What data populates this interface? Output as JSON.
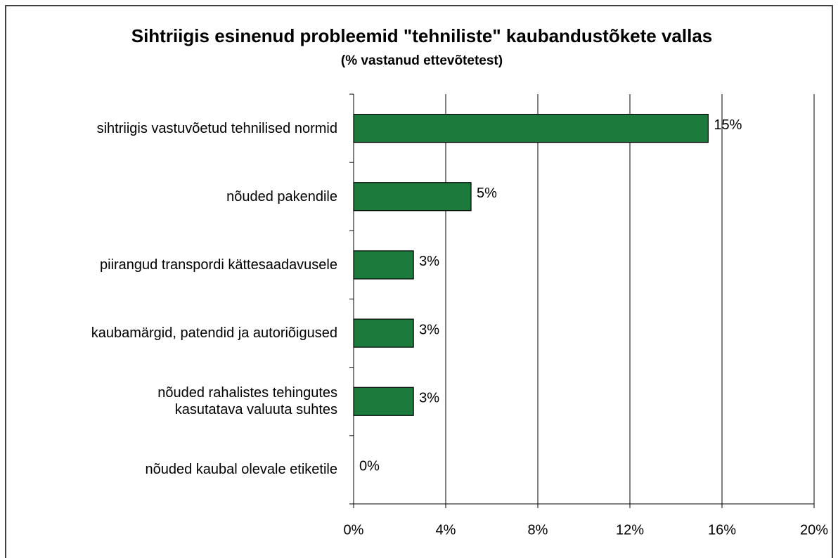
{
  "chart_data": {
    "type": "barh",
    "title": "Sihtriigis esinenud probleemid \"tehniliste\" kaubandustõkete vallas",
    "subtitle": "(% vastanud ettevõtetest)",
    "categories": [
      "sihtriigis vastuvõetud tehnilised normid",
      "nõuded pakendile",
      "piirangud transpordi kättesaadavusele",
      "kaubamärgid, patendid ja autoriõigused",
      "nõuded rahalistes tehingutes\nkasutatava valuuta suhtes",
      "nõuded kaubal olevale etiketile"
    ],
    "values": [
      15.4,
      5.1,
      2.6,
      2.6,
      2.6,
      0
    ],
    "value_labels": [
      "15%",
      "5%",
      "3%",
      "3%",
      "3%",
      "0%"
    ],
    "color": "#1d7a3d",
    "xlim": [
      0,
      20
    ],
    "xticks": [
      {
        "value": 0,
        "label": "0%"
      },
      {
        "value": 4,
        "label": "4%"
      },
      {
        "value": 8,
        "label": "8%"
      },
      {
        "value": 12,
        "label": "12%"
      },
      {
        "value": 16,
        "label": "16%"
      },
      {
        "value": 20,
        "label": "20%"
      }
    ],
    "grid": true
  }
}
